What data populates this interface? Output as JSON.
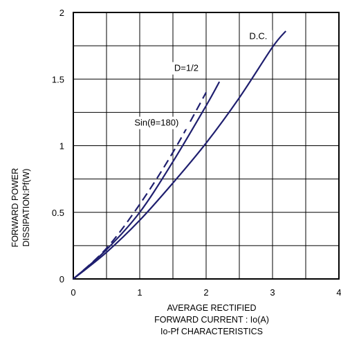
{
  "chart_data": {
    "type": "line",
    "xlabel": [
      "AVERAGE RECTIFIED",
      "FORWARD CURRENT : Io(A)"
    ],
    "ylabel": [
      "FORWARD POWER",
      "DISSIPATION:Pf(W)"
    ],
    "caption": "Io-Pf  CHARACTERISTICS",
    "xlim": [
      0,
      4
    ],
    "ylim": [
      0,
      2
    ],
    "x_ticks": [
      "0",
      "1",
      "2",
      "3",
      "4"
    ],
    "y_ticks": [
      "0",
      "0.5",
      "1",
      "1.5",
      "2"
    ],
    "x_tick_values": [
      0,
      1,
      2,
      3,
      4
    ],
    "y_tick_values": [
      0,
      0.5,
      1,
      1.5,
      2
    ],
    "grid": true,
    "series": [
      {
        "name": "D.C.",
        "style": "solid",
        "x": [
          0,
          0.5,
          1.0,
          1.5,
          2.0,
          2.5,
          3.0,
          3.2
        ],
        "y": [
          0,
          0.2,
          0.44,
          0.72,
          1.02,
          1.36,
          1.74,
          1.86
        ]
      },
      {
        "name": "D=1/2",
        "style": "solid",
        "x": [
          0,
          0.5,
          1.0,
          1.5,
          2.0,
          2.2
        ],
        "y": [
          0,
          0.22,
          0.5,
          0.88,
          1.3,
          1.48
        ]
      },
      {
        "name": "Sin(θ=180)",
        "style": "dashed",
        "x": [
          0,
          0.5,
          1.0,
          1.5,
          2.0
        ],
        "y": [
          0,
          0.23,
          0.56,
          0.95,
          1.4
        ]
      }
    ],
    "line_color": "#1f1f6f"
  }
}
